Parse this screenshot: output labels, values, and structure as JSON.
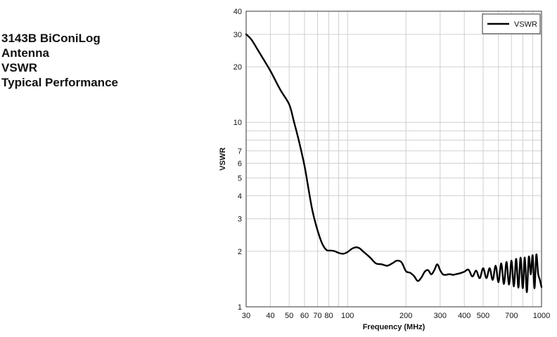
{
  "heading": {
    "lines": [
      "3143B BiConiLog",
      "Antenna",
      "VSWR",
      "Typical Performance"
    ]
  },
  "chart_data": {
    "type": "line",
    "title": "",
    "xlabel": "Frequency (MHz)",
    "ylabel": "VSWR",
    "xscale": "log",
    "yscale": "log",
    "xlim": [
      30,
      1000
    ],
    "ylim": [
      1,
      40
    ],
    "grid": true,
    "legend_position": "top-right",
    "x_ticks": [
      "30",
      "40",
      "50",
      "60",
      "70",
      "80",
      "100",
      "200",
      "300",
      "400",
      "500",
      "700",
      "1000"
    ],
    "x_tick_values": [
      30,
      40,
      50,
      60,
      70,
      80,
      100,
      200,
      300,
      400,
      500,
      700,
      1000
    ],
    "y_ticks": [
      "1",
      "2",
      "3",
      "4",
      "5",
      "6",
      "7",
      "10",
      "20",
      "30",
      "40"
    ],
    "y_tick_values": [
      1,
      2,
      3,
      4,
      5,
      6,
      7,
      10,
      20,
      30,
      40
    ],
    "series": [
      {
        "name": "VSWR",
        "color": "#000000",
        "x": [
          30,
          32,
          35,
          40,
          45,
          50,
          53,
          56,
          60,
          63,
          66,
          70,
          74,
          78,
          82,
          86,
          90,
          95,
          100,
          105,
          110,
          115,
          120,
          130,
          140,
          150,
          160,
          170,
          180,
          190,
          200,
          210,
          220,
          230,
          240,
          250,
          260,
          270,
          280,
          290,
          300,
          310,
          320,
          330,
          340,
          350,
          360,
          380,
          400,
          420,
          440,
          460,
          480,
          500,
          520,
          540,
          560,
          580,
          600,
          620,
          640,
          660,
          680,
          700,
          720,
          740,
          760,
          780,
          800,
          820,
          840,
          860,
          880,
          900,
          920,
          940,
          960,
          980,
          1000
        ],
        "y": [
          30,
          28,
          24,
          19,
          15,
          12.5,
          10,
          8,
          5.8,
          4.3,
          3.3,
          2.6,
          2.2,
          2.03,
          2.02,
          2.0,
          1.96,
          1.94,
          1.98,
          2.06,
          2.1,
          2.08,
          2.0,
          1.86,
          1.72,
          1.7,
          1.67,
          1.72,
          1.78,
          1.74,
          1.56,
          1.53,
          1.47,
          1.38,
          1.44,
          1.55,
          1.58,
          1.5,
          1.58,
          1.7,
          1.58,
          1.5,
          1.49,
          1.5,
          1.5,
          1.49,
          1.5,
          1.52,
          1.55,
          1.59,
          1.46,
          1.57,
          1.43,
          1.62,
          1.43,
          1.62,
          1.4,
          1.67,
          1.36,
          1.72,
          1.33,
          1.75,
          1.32,
          1.78,
          1.29,
          1.82,
          1.27,
          1.85,
          1.26,
          1.85,
          1.2,
          1.87,
          1.5,
          1.9,
          1.26,
          1.92,
          1.52,
          1.4,
          1.28
        ]
      }
    ]
  }
}
